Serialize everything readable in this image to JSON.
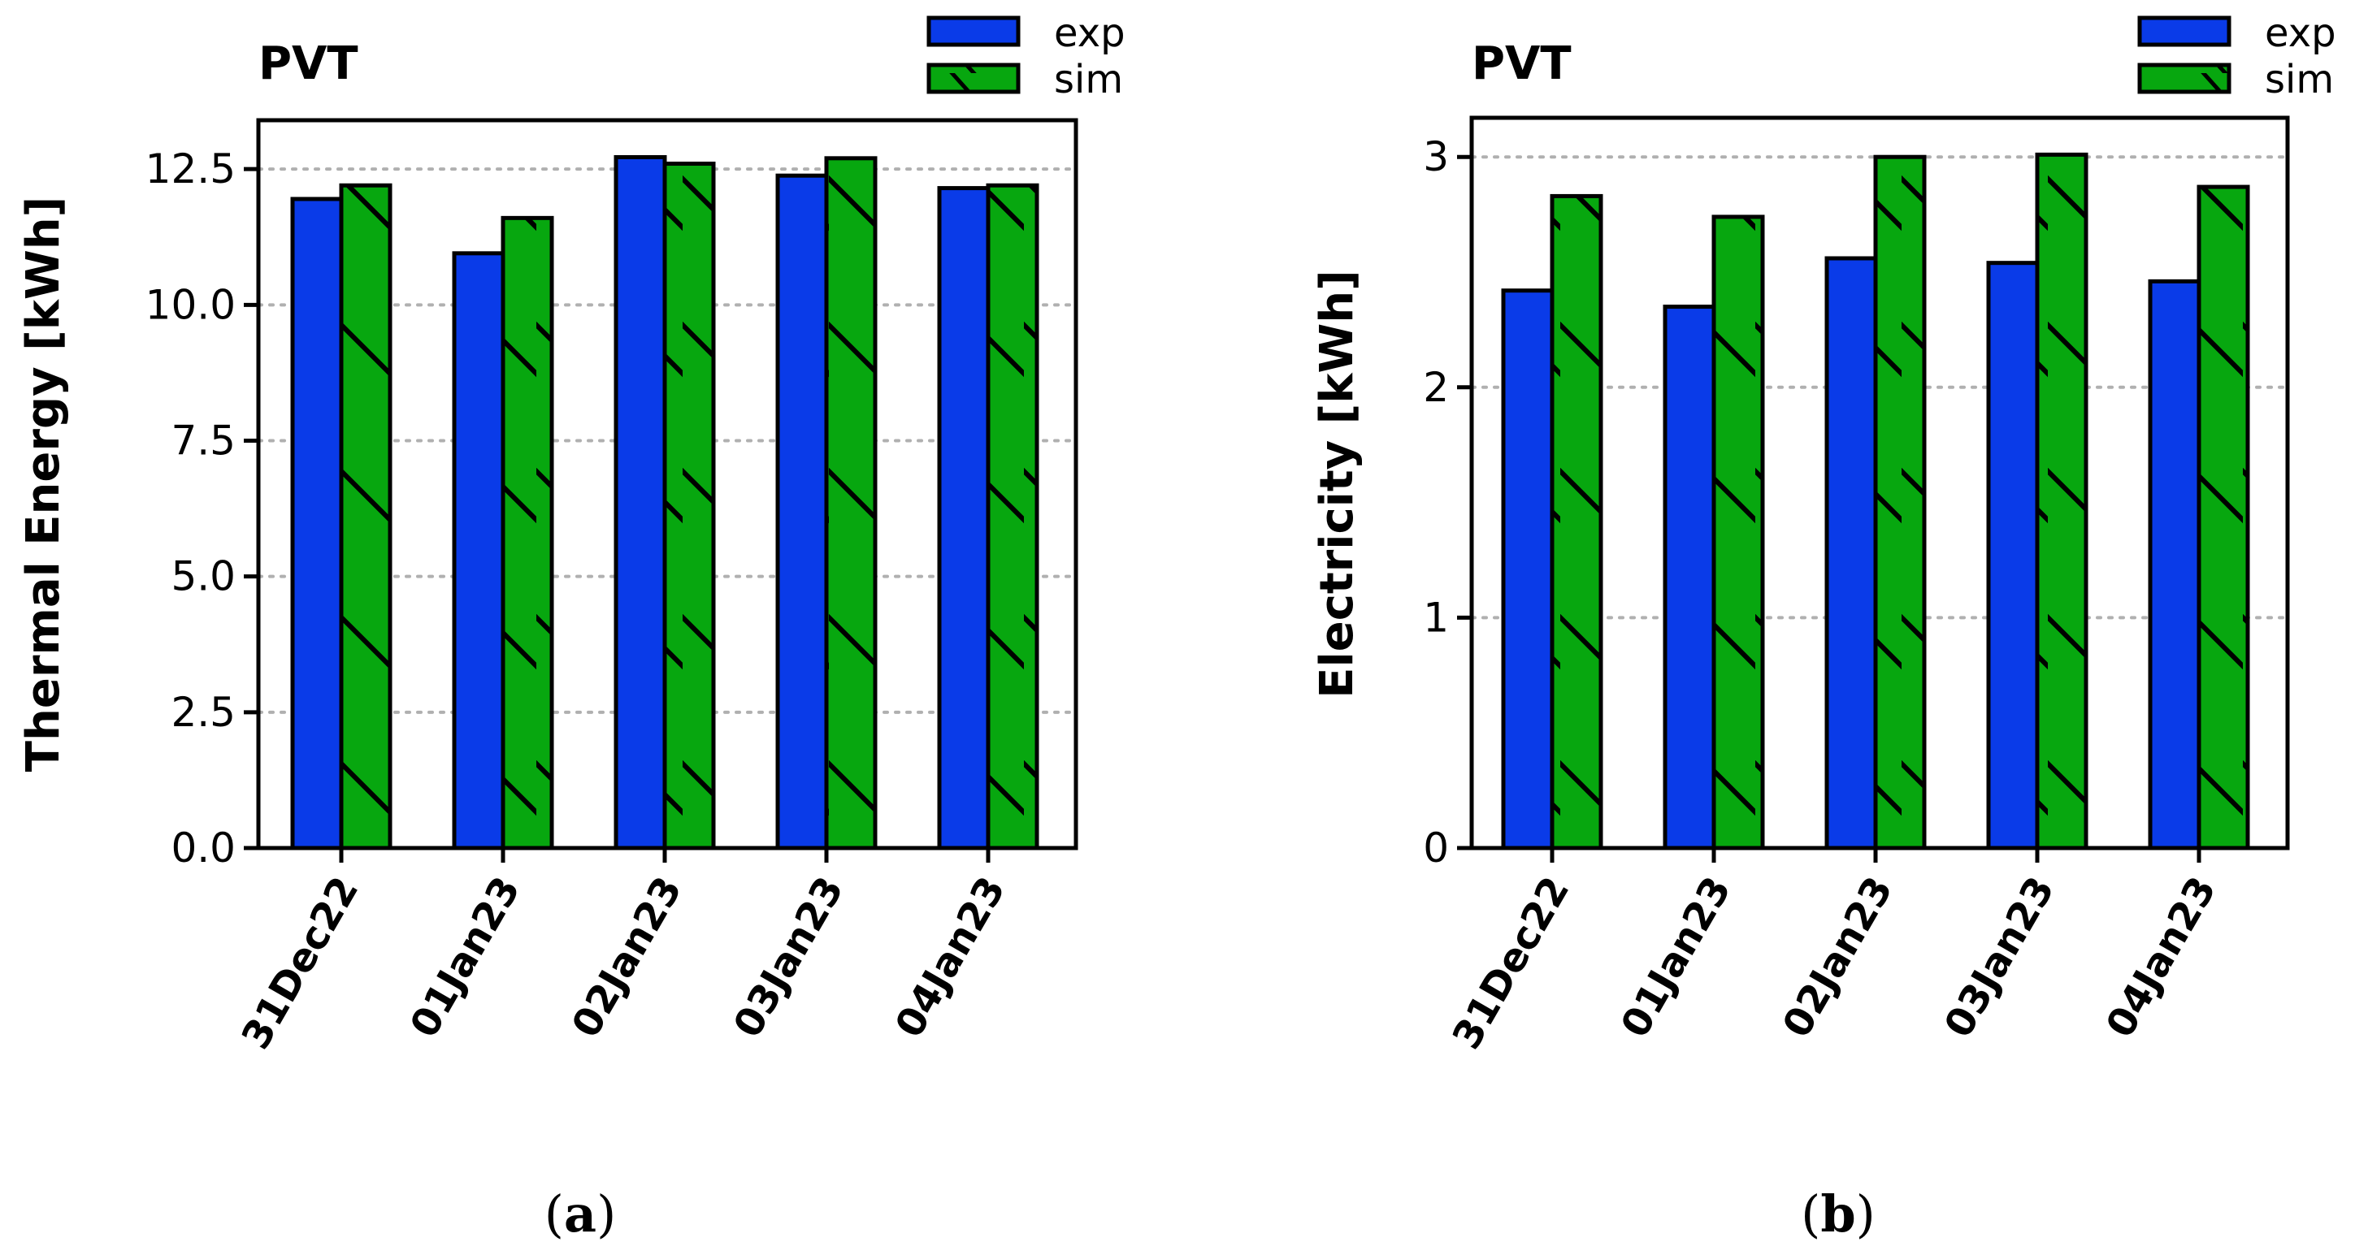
{
  "colors": {
    "exp": "#0a3be8",
    "sim": "#07a70f",
    "edge": "#000000",
    "grid": "#b0b0b0"
  },
  "chart_data": [
    {
      "type": "bar",
      "title": "PVT",
      "ylabel": "Thermal Energy [kWh]",
      "xlabel": "",
      "caption": "(a)",
      "caption_letter": "a",
      "categories": [
        "31Dec22",
        "01Jan23",
        "02Jan23",
        "03Jan23",
        "04Jan23"
      ],
      "series": [
        {
          "name": "exp",
          "values": [
            11.95,
            10.95,
            12.72,
            12.38,
            12.15
          ]
        },
        {
          "name": "sim",
          "values": [
            12.2,
            11.6,
            12.6,
            12.7,
            12.2
          ]
        }
      ],
      "ylim": [
        0,
        13.4
      ],
      "yticks": [
        0,
        2.5,
        5,
        7.5,
        10,
        12.5
      ],
      "ytick_labels": [
        "0.0",
        "2.5",
        "5.0",
        "7.5",
        "10.0",
        "12.5"
      ],
      "grid": "horizontal dotted",
      "legend": "top-right (outside)"
    },
    {
      "type": "bar",
      "title": "PVT",
      "ylabel": "Electricity [kWh]",
      "xlabel": "",
      "caption": "(b)",
      "caption_letter": "b",
      "categories": [
        "31Dec22",
        "01Jan23",
        "02Jan23",
        "03Jan23",
        "04Jan23"
      ],
      "series": [
        {
          "name": "exp",
          "values": [
            2.42,
            2.35,
            2.56,
            2.54,
            2.46
          ]
        },
        {
          "name": "sim",
          "values": [
            2.83,
            2.74,
            3.0,
            3.01,
            2.87
          ]
        }
      ],
      "ylim": [
        0,
        3.17
      ],
      "yticks": [
        0,
        1,
        2,
        3
      ],
      "ytick_labels": [
        "0",
        "1",
        "2",
        "3"
      ],
      "grid": "horizontal dotted",
      "legend": "top-right (outside)"
    }
  ]
}
